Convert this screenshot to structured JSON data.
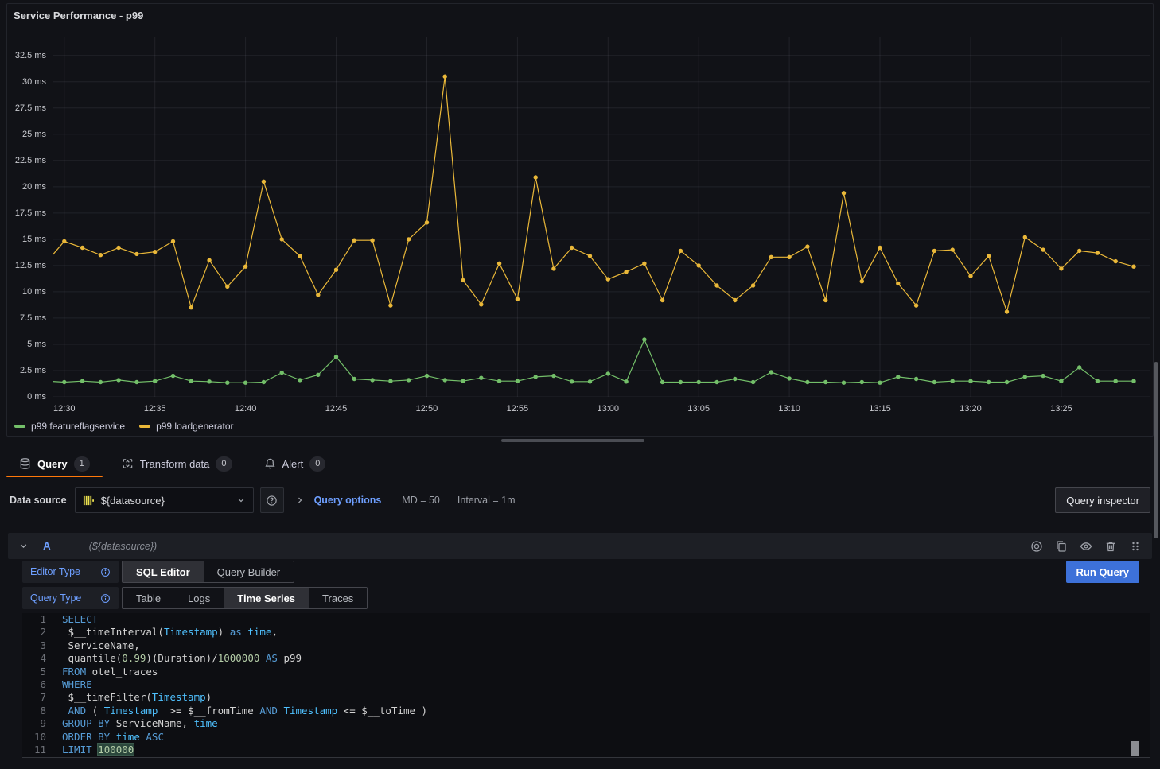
{
  "panel": {
    "title": "Service Performance - p99"
  },
  "chart_data": {
    "type": "line",
    "title": "Service Performance - p99",
    "unit": "ms",
    "grid": true,
    "legend_position": "bottom",
    "ylim": [
      0,
      34.3
    ],
    "x": [
      "12:29",
      "12:30",
      "12:31",
      "12:32",
      "12:33",
      "12:34",
      "12:35",
      "12:36",
      "12:37",
      "12:38",
      "12:39",
      "12:40",
      "12:41",
      "12:42",
      "12:43",
      "12:44",
      "12:45",
      "12:46",
      "12:47",
      "12:48",
      "12:49",
      "12:50",
      "12:51",
      "12:52",
      "12:53",
      "12:54",
      "12:55",
      "12:56",
      "12:57",
      "12:58",
      "12:59",
      "13:00",
      "13:01",
      "13:02",
      "13:03",
      "13:04",
      "13:05",
      "13:06",
      "13:07",
      "13:08",
      "13:09",
      "13:10",
      "13:11",
      "13:12",
      "13:13",
      "13:14",
      "13:15",
      "13:16",
      "13:17",
      "13:18",
      "13:19",
      "13:20",
      "13:21",
      "13:22",
      "13:23",
      "13:24",
      "13:25",
      "13:26",
      "13:27",
      "13:28",
      "13:29"
    ],
    "x_ticks": [
      "12:30",
      "12:35",
      "12:40",
      "12:45",
      "12:50",
      "12:55",
      "13:00",
      "13:05",
      "13:10",
      "13:15",
      "13:20",
      "13:25"
    ],
    "y_ticks": [
      {
        "v": 0,
        "label": "0 ms"
      },
      {
        "v": 2.5,
        "label": "2.5 ms"
      },
      {
        "v": 5,
        "label": "5 ms"
      },
      {
        "v": 7.5,
        "label": "7.5 ms"
      },
      {
        "v": 10,
        "label": "10 ms"
      },
      {
        "v": 12.5,
        "label": "12.5 ms"
      },
      {
        "v": 15,
        "label": "15 ms"
      },
      {
        "v": 17.5,
        "label": "17.5 ms"
      },
      {
        "v": 20,
        "label": "20 ms"
      },
      {
        "v": 22.5,
        "label": "22.5 ms"
      },
      {
        "v": 25,
        "label": "25 ms"
      },
      {
        "v": 27.5,
        "label": "27.5 ms"
      },
      {
        "v": 30,
        "label": "30 ms"
      },
      {
        "v": 32.5,
        "label": "32.5 ms"
      }
    ],
    "series": [
      {
        "name": "p99 featureflagservice",
        "color": "#73BF69",
        "values": [
          1.5,
          1.4,
          1.5,
          1.4,
          1.6,
          1.4,
          1.5,
          2.0,
          1.5,
          1.45,
          1.35,
          1.35,
          1.4,
          2.3,
          1.6,
          2.1,
          3.8,
          1.7,
          1.6,
          1.5,
          1.6,
          2.0,
          1.6,
          1.5,
          1.8,
          1.5,
          1.5,
          1.9,
          2.0,
          1.45,
          1.45,
          2.2,
          1.45,
          5.45,
          1.4,
          1.4,
          1.4,
          1.4,
          1.7,
          1.4,
          2.35,
          1.75,
          1.4,
          1.4,
          1.35,
          1.4,
          1.35,
          1.9,
          1.7,
          1.4,
          1.5,
          1.5,
          1.4,
          1.4,
          1.9,
          2.0,
          1.5,
          2.8,
          1.5,
          1.5,
          1.5
        ]
      },
      {
        "name": "p99 loadgenerator",
        "color": "#EAB839",
        "values": [
          12.8,
          14.8,
          14.2,
          13.5,
          14.2,
          13.6,
          13.8,
          14.8,
          8.5,
          13.0,
          10.5,
          12.4,
          20.5,
          15.0,
          13.4,
          9.7,
          12.1,
          14.9,
          14.9,
          8.7,
          15.0,
          16.6,
          30.5,
          11.1,
          8.8,
          12.7,
          9.3,
          20.9,
          12.2,
          14.2,
          13.4,
          11.2,
          11.9,
          12.7,
          9.2,
          13.9,
          12.5,
          10.6,
          9.2,
          10.6,
          13.3,
          13.3,
          14.3,
          9.2,
          19.4,
          11.0,
          14.2,
          10.8,
          8.7,
          13.9,
          14.0,
          11.5,
          13.4,
          8.1,
          15.2,
          14.0,
          12.2,
          13.9,
          13.7,
          12.9,
          12.4
        ]
      }
    ]
  },
  "tabs": [
    {
      "label": "Query",
      "count": "1",
      "icon": "database-icon",
      "active": true
    },
    {
      "label": "Transform data",
      "count": "0",
      "icon": "transform-icon",
      "active": false
    },
    {
      "label": "Alert",
      "count": "0",
      "icon": "bell-icon",
      "active": false
    }
  ],
  "toolbar": {
    "datasource_label": "Data source",
    "datasource_value": "${datasource}",
    "query_options_label": "Query options",
    "query_options_md": "MD = 50",
    "query_options_interval": "Interval = 1m",
    "query_inspector_label": "Query inspector"
  },
  "query_row": {
    "ref_id": "A",
    "datasource_hint": "(${datasource})"
  },
  "editor": {
    "editor_type_label": "Editor Type",
    "editor_type_options": [
      "SQL Editor",
      "Query Builder"
    ],
    "editor_type_active": "SQL Editor",
    "query_type_label": "Query Type",
    "query_type_options": [
      "Table",
      "Logs",
      "Time Series",
      "Traces"
    ],
    "query_type_active": "Time Series",
    "run_query_label": "Run Query"
  },
  "sql": {
    "lines": [
      {
        "n": "1",
        "tokens": [
          {
            "c": "kw",
            "t": "SELECT"
          }
        ]
      },
      {
        "n": "2",
        "tokens": [
          {
            "c": "pl",
            "t": " $__timeInterval("
          },
          {
            "c": "ty",
            "t": "Timestamp"
          },
          {
            "c": "pl",
            "t": ") "
          },
          {
            "c": "kw",
            "t": "as"
          },
          {
            "c": "pl",
            "t": " "
          },
          {
            "c": "ty",
            "t": "time"
          },
          {
            "c": "pl",
            "t": ","
          }
        ]
      },
      {
        "n": "3",
        "tokens": [
          {
            "c": "pl",
            "t": " ServiceName,"
          }
        ]
      },
      {
        "n": "4",
        "tokens": [
          {
            "c": "pl",
            "t": " quantile("
          },
          {
            "c": "num",
            "t": "0.99"
          },
          {
            "c": "pl",
            "t": ")(Duration)/"
          },
          {
            "c": "num",
            "t": "1000000"
          },
          {
            "c": "pl",
            "t": " "
          },
          {
            "c": "kw",
            "t": "AS"
          },
          {
            "c": "pl",
            "t": " p99"
          }
        ]
      },
      {
        "n": "5",
        "tokens": [
          {
            "c": "kw",
            "t": "FROM"
          },
          {
            "c": "pl",
            "t": " otel_traces"
          }
        ]
      },
      {
        "n": "6",
        "tokens": [
          {
            "c": "kw",
            "t": "WHERE"
          }
        ]
      },
      {
        "n": "7",
        "tokens": [
          {
            "c": "pl",
            "t": " $__timeFilter("
          },
          {
            "c": "ty",
            "t": "Timestamp"
          },
          {
            "c": "pl",
            "t": ")"
          }
        ]
      },
      {
        "n": "8",
        "tokens": [
          {
            "c": "pl",
            "t": " "
          },
          {
            "c": "kw",
            "t": "AND"
          },
          {
            "c": "pl",
            "t": " ( "
          },
          {
            "c": "ty",
            "t": "Timestamp"
          },
          {
            "c": "pl",
            "t": "  >= $__fromTime "
          },
          {
            "c": "kw",
            "t": "AND"
          },
          {
            "c": "pl",
            "t": " "
          },
          {
            "c": "ty",
            "t": "Timestamp"
          },
          {
            "c": "pl",
            "t": " <= $__toTime )"
          }
        ]
      },
      {
        "n": "9",
        "tokens": [
          {
            "c": "kw",
            "t": "GROUP BY"
          },
          {
            "c": "pl",
            "t": " ServiceName, "
          },
          {
            "c": "ty",
            "t": "time"
          }
        ]
      },
      {
        "n": "10",
        "tokens": [
          {
            "c": "kw",
            "t": "ORDER BY"
          },
          {
            "c": "pl",
            "t": " "
          },
          {
            "c": "ty",
            "t": "time"
          },
          {
            "c": "pl",
            "t": " "
          },
          {
            "c": "kw",
            "t": "ASC"
          }
        ]
      },
      {
        "n": "11",
        "tokens": [
          {
            "c": "kw",
            "t": "LIMIT"
          },
          {
            "c": "pl",
            "t": " "
          },
          {
            "c": "sel",
            "t": "100000"
          }
        ]
      }
    ]
  },
  "colors": {
    "accent_orange": "#FF780A",
    "link_blue": "#6E9FFF",
    "primary_button_blue": "#3D71D9",
    "series_green": "#73BF69",
    "series_yellow": "#EAB839",
    "datasource_icon_yellow": "#EDE24F",
    "syntax_keyword": "#569CD6",
    "syntax_type": "#4FC1FF",
    "syntax_number": "#B5CEA8",
    "syntax_text": "#D4D4D4"
  }
}
